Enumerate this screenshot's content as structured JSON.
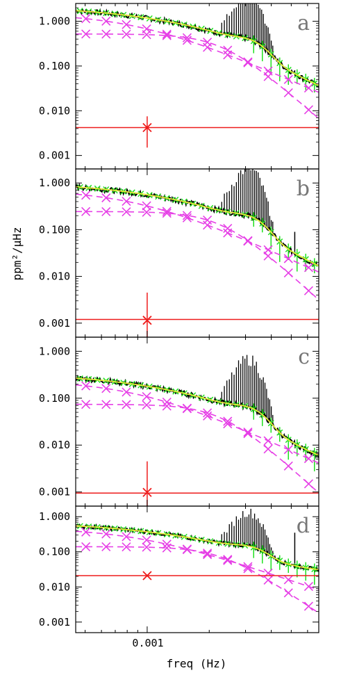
{
  "chart_data": {
    "type": "line",
    "xlabel": "freq (Hz)",
    "ylabel": "ppm²/μHz",
    "x_tick_labels": [
      "0.001"
    ],
    "y_tick_labels": [
      "1.000",
      "0.100",
      "0.010",
      "0.001"
    ],
    "x_scale": "log",
    "y_scale": "log",
    "xlim": [
      0.00045,
      0.0068
    ],
    "panels": [
      {
        "label": "a",
        "ylim": [
          0.0005,
          2.5
        ],
        "white_noise": 0.0042,
        "granulation_1": {
          "amp": 1.5,
          "fc": 0.0009
        },
        "granulation_2": {
          "amp": 0.52,
          "fc": 0.0023
        },
        "osc_envelope": {
          "height": 0.16,
          "numax": 0.0031
        },
        "spike": {
          "x": 0.0052,
          "y": 0.08
        },
        "noise_marker": {
          "x": 0.001,
          "y": 0.0042,
          "low": 0.0015,
          "high": 0.0075
        }
      },
      {
        "label": "b",
        "ylim": [
          0.0005,
          2.0
        ],
        "white_noise": 0.0012,
        "granulation_1": {
          "amp": 0.72,
          "fc": 0.0009
        },
        "granulation_2": {
          "amp": 0.245,
          "fc": 0.0023
        },
        "osc_envelope": {
          "height": 0.085,
          "numax": 0.0031
        },
        "spike": {
          "x": 0.0052,
          "y": 0.09
        },
        "noise_marker": {
          "x": 0.001,
          "y": 0.00115,
          "low": 0.0004,
          "high": 0.0045
        }
      },
      {
        "label": "c",
        "ylim": [
          0.0005,
          2.0
        ],
        "white_noise": 0.00095,
        "granulation_1": {
          "amp": 0.24,
          "fc": 0.0009
        },
        "granulation_2": {
          "amp": 0.074,
          "fc": 0.0023
        },
        "osc_envelope": {
          "height": 0.028,
          "numax": 0.0031
        },
        "spike": null,
        "noise_marker": {
          "x": 0.001,
          "y": 0.00098,
          "low": 0.0004,
          "high": 0.0045
        }
      },
      {
        "label": "d",
        "ylim": [
          0.0005,
          2.0
        ],
        "white_noise": 0.021,
        "granulation_1": {
          "amp": 0.48,
          "fc": 0.0009
        },
        "granulation_2": {
          "amp": 0.14,
          "fc": 0.0023
        },
        "osc_envelope": {
          "height": 0.055,
          "numax": 0.0031
        },
        "spike": {
          "x": 0.0052,
          "y": 0.35
        },
        "noise_marker": {
          "x": 0.001,
          "y": 0.021,
          "low": null,
          "high": null
        }
      }
    ],
    "colors": {
      "data": "#000000",
      "model_fit": "#1fe01f",
      "components": "#e63fe6",
      "white_noise": "#ee1b1b",
      "osc_envelope": "#e8e83a",
      "panel_letter": "#777777"
    }
  }
}
